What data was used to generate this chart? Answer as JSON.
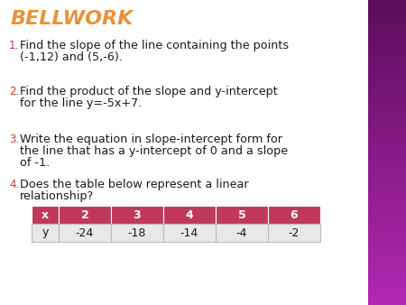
{
  "title": "BELLWORK",
  "title_color": "#E8923A",
  "bg_color": "#FFFFFF",
  "right_bar_color_top": "#5C1A5C",
  "right_bar_color_bottom": "#CC44CC",
  "items": [
    "Find the slope of the line containing the points\n(-1,12) and (5,-6).",
    "Find the product of the slope and y-intercept\nfor the line y=-5x+7.",
    "Write the equation in slope-intercept form for\nthe line that has a y-intercept of 0 and a slope\nof -1.",
    "Does the table below represent a linear\nrelationship?"
  ],
  "item_numbers": [
    "1.",
    "2.",
    "3.",
    "4."
  ],
  "item_number_color": "#C0392B",
  "text_color": "#1a1a1a",
  "table_header_bg": "#C0395A",
  "table_header_text": "#FFFFFF",
  "table_row_bg": "#E8E8E8",
  "table_row_text": "#1a1a1a",
  "table_x_labels": [
    "x",
    "2",
    "3",
    "4",
    "5",
    "6"
  ],
  "table_y_labels": [
    "y",
    "-24",
    "-18",
    "-14",
    "-4",
    "-2"
  ],
  "title_fontsize": 16,
  "item_fontsize": 9.2,
  "number_fontsize": 8.5
}
